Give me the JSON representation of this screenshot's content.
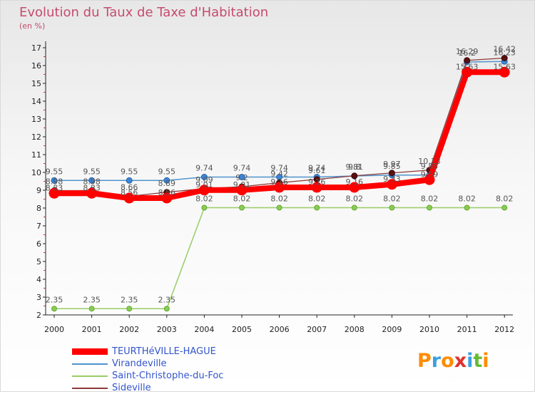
{
  "chart_data": {
    "type": "line",
    "title": "Evolution du Taux de Taxe d'Habitation",
    "subtitle": "(en %)",
    "xlabel": "",
    "ylabel": "(en %)",
    "ylim": [
      2,
      17
    ],
    "yticks": [
      2,
      3,
      4,
      5,
      6,
      7,
      8,
      9,
      10,
      11,
      12,
      13,
      14,
      15,
      16,
      17
    ],
    "categories": [
      "2000",
      "2001",
      "2002",
      "2003",
      "2004",
      "2005",
      "2006",
      "2007",
      "2008",
      "2009",
      "2010",
      "2011",
      "2012"
    ],
    "grid": false,
    "legend_position": "bottom-left",
    "series": [
      {
        "name": "TEURTHéVILLE-HAGUE",
        "color": "#ff0000",
        "values": [
          8.83,
          8.83,
          8.56,
          8.56,
          9.01,
          9.01,
          9.16,
          9.16,
          9.16,
          9.33,
          9.59,
          15.63,
          15.63
        ],
        "labels": [
          "8.83",
          "8.83",
          "8.56",
          "8.56",
          "9.01",
          "9.01",
          "9.16",
          "9.16",
          "9.16",
          "9.33",
          "9.59",
          "15.63",
          "15.63"
        ]
      },
      {
        "name": "Virandeville",
        "color": "#4f94cd",
        "values": [
          9.55,
          9.55,
          9.55,
          9.55,
          9.74,
          9.74,
          9.74,
          9.74,
          9.8,
          9.85,
          9.85,
          16.2,
          16.23
        ],
        "labels": [
          "9.55",
          "9.55",
          "9.55",
          "9.55",
          "9.74",
          "9.74",
          "9.74",
          "9.74",
          "9.8",
          "9.85",
          "9.85",
          "16.2",
          "16.23"
        ]
      },
      {
        "name": "Saint-Christophe-du-Foc",
        "color": "#99cc66",
        "values": [
          2.35,
          2.35,
          2.35,
          2.35,
          8.02,
          8.02,
          8.02,
          8.02,
          8.02,
          8.02,
          8.02,
          8.02,
          8.02
        ],
        "labels": [
          "2.35",
          "2.35",
          "2.35",
          "2.35",
          "8.02",
          "8.02",
          "8.02",
          "8.02",
          "8.02",
          "8.02",
          "8.02",
          "8.02",
          "8.02"
        ]
      },
      {
        "name": "Sideville",
        "color": "#8b3a3a",
        "values": [
          8.98,
          8.98,
          8.66,
          8.89,
          9.09,
          9.2,
          9.42,
          9.61,
          9.81,
          9.97,
          10.13,
          16.29,
          16.42
        ],
        "labels": [
          "8.98",
          "8.98",
          "8.66",
          "8.89",
          "9.09",
          "9.2",
          "9.42",
          "9.61",
          "9.81",
          "9.97",
          "10.13",
          "16.29",
          "16.42"
        ]
      }
    ]
  },
  "logo": {
    "letters": [
      "P",
      "r",
      "o",
      "x",
      "i",
      "t",
      "i"
    ],
    "colors": [
      "#ff8c00",
      "#3aa0e0",
      "#ff8c00",
      "#e03030",
      "#3aa0e0",
      "#66bb33",
      "#ff8c00"
    ]
  }
}
